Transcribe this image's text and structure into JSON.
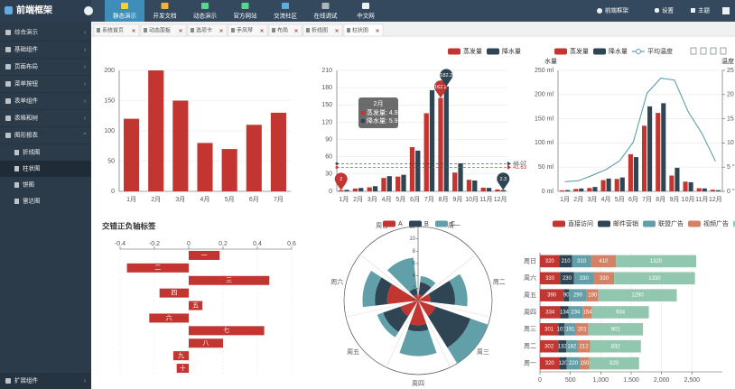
{
  "header": {
    "logo": "前端框架",
    "nav": [
      {
        "label": "静态演示",
        "active": true
      },
      {
        "label": "开发文档"
      },
      {
        "label": "动态演示"
      },
      {
        "label": "官方网站"
      },
      {
        "label": "交流社区"
      },
      {
        "label": "在线调试"
      },
      {
        "label": "中文网"
      }
    ],
    "user": "前端框架",
    "settings": "设置",
    "theme": "主题"
  },
  "sidebar": {
    "items": [
      {
        "label": "综合演示"
      },
      {
        "label": "基础组件"
      },
      {
        "label": "页面布局"
      },
      {
        "label": "菜单按钮"
      },
      {
        "label": "表单组件"
      },
      {
        "label": "表格和树"
      },
      {
        "label": "图形报表",
        "expanded": true,
        "children": [
          {
            "label": "折线图"
          },
          {
            "label": "柱状图",
            "active": true
          },
          {
            "label": "饼图"
          },
          {
            "label": "雷达图"
          }
        ]
      }
    ],
    "footer": "扩展组件"
  },
  "tabs": [
    {
      "label": "系统首页"
    },
    {
      "label": "动态面板"
    },
    {
      "label": "选项卡"
    },
    {
      "label": "手风琴"
    },
    {
      "label": "布局"
    },
    {
      "label": "折线图"
    },
    {
      "label": "柱状图",
      "active": true
    }
  ],
  "chart_data": [
    {
      "type": "bar",
      "categories": [
        "1月",
        "2月",
        "3月",
        "4月",
        "5月",
        "6月",
        "7月"
      ],
      "values": [
        120,
        200,
        150,
        80,
        70,
        110,
        130
      ],
      "color": "#c23531",
      "ylim": [
        0,
        200
      ],
      "yticks": [
        0,
        50,
        100,
        150,
        200
      ],
      "grid": true
    },
    {
      "type": "bar",
      "categories": [
        "1月",
        "2月",
        "3月",
        "4月",
        "5月",
        "6月",
        "7月",
        "8月",
        "9月",
        "10月",
        "11月",
        "12月"
      ],
      "series": [
        {
          "name": "蒸发量",
          "color": "#c23531",
          "values": [
            2.0,
            4.9,
            7.0,
            23.2,
            25.6,
            76.7,
            135.6,
            162.2,
            32.6,
            20.0,
            6.4,
            3.3
          ],
          "mark_points": [
            "max",
            "min"
          ],
          "mark_line": 41.63
        },
        {
          "name": "降水量",
          "color": "#2f4554",
          "values": [
            2.6,
            5.9,
            9.0,
            26.4,
            28.7,
            70.7,
            175.6,
            182.2,
            48.7,
            18.8,
            6.0,
            2.3
          ],
          "mark_points": [
            "max",
            "min"
          ],
          "mark_line": 48.07
        }
      ],
      "ylim": [
        0,
        210
      ],
      "yticks": [
        0,
        30,
        60,
        90,
        120,
        150,
        180,
        210
      ],
      "grid": true,
      "legend": "top-right",
      "tooltip": {
        "title": "2月",
        "rows": [
          "蒸发量: 4.9",
          "降水量: 5.9"
        ]
      }
    },
    {
      "type": "bar",
      "categories": [
        "1月",
        "2月",
        "3月",
        "4月",
        "5月",
        "6月",
        "7月",
        "8月",
        "9月",
        "10月",
        "11月",
        "12月"
      ],
      "series": [
        {
          "name": "蒸发量",
          "color": "#c23531",
          "values": [
            2.0,
            4.9,
            7.0,
            23.2,
            25.6,
            76.7,
            135.6,
            162.2,
            32.6,
            20.0,
            6.4,
            3.3
          ]
        },
        {
          "name": "降水量",
          "color": "#2f4554",
          "values": [
            2.6,
            5.9,
            9.0,
            26.4,
            28.7,
            70.7,
            175.6,
            182.2,
            48.7,
            18.8,
            6.0,
            2.3
          ]
        },
        {
          "name": "平均温度",
          "color": "#61a0a8",
          "type": "line",
          "axis": "y2",
          "values": [
            2.0,
            2.2,
            3.3,
            4.5,
            6.3,
            10.2,
            20.3,
            23.4,
            23.0,
            16.5,
            12.0,
            6.2
          ]
        }
      ],
      "ylabel": "水量",
      "y2label": "温度",
      "ylim": [
        0,
        250
      ],
      "yticks": [
        {
          "value": 0,
          "label": "0 ml"
        },
        {
          "value": 50,
          "label": "50 ml"
        },
        {
          "value": 100,
          "label": "100 ml"
        },
        {
          "value": 150,
          "label": "150 ml"
        },
        {
          "value": 200,
          "label": "200 ml"
        },
        {
          "value": 250,
          "label": "250 ml"
        }
      ],
      "y2lim": [
        0,
        25
      ],
      "y2ticks": [
        {
          "value": 0,
          "label": "0 °C"
        },
        {
          "value": 5,
          "label": "5 °C"
        },
        {
          "value": 10,
          "label": "10 °C"
        },
        {
          "value": 15,
          "label": "15 °C"
        },
        {
          "value": 20,
          "label": "20 °C"
        },
        {
          "value": 25,
          "label": "25 °C"
        }
      ],
      "grid": true,
      "legend": "top-left"
    },
    {
      "type": "hbar",
      "title": "交错正负轴标签",
      "categories": [
        "十",
        "九",
        "八",
        "七",
        "六",
        "五",
        "四",
        "三",
        "二",
        "一"
      ],
      "values": [
        -0.07,
        -0.09,
        0.2,
        0.44,
        -0.23,
        0.08,
        -0.17,
        0.47,
        -0.36,
        0.18
      ],
      "color": "#c23531",
      "xlim": [
        -0.4,
        0.6
      ],
      "xticks": [
        -0.4,
        -0.2,
        0,
        0.2,
        0.4,
        0.6
      ],
      "x_axis_position": "top",
      "category_labels": "on-bar",
      "grid": true
    },
    {
      "type": "polar-bar",
      "categories": [
        "周一",
        "周二",
        "周三",
        "周四",
        "周五",
        "周六",
        "周日"
      ],
      "series": [
        {
          "name": "A",
          "color": "#c23531",
          "values": [
            1,
            2,
            3,
            4,
            3,
            5,
            1
          ]
        },
        {
          "name": "B",
          "color": "#2f4554",
          "values": [
            2,
            4,
            6,
            1,
            3,
            2,
            1
          ]
        },
        {
          "name": "C",
          "color": "#61a0a8",
          "values": [
            1,
            2,
            3,
            4,
            1,
            2,
            5
          ]
        }
      ],
      "rlim": [
        0,
        12
      ],
      "rticks": [
        0,
        2,
        4,
        6,
        8,
        10,
        12
      ],
      "legend": "top-left"
    },
    {
      "type": "hbar",
      "stacked": true,
      "categories": [
        "周一",
        "周二",
        "周三",
        "周四",
        "周五",
        "周六",
        "周日"
      ],
      "series": [
        {
          "name": "直接访问",
          "color": "#c23531",
          "values": [
            320,
            302,
            301,
            334,
            390,
            330,
            320
          ]
        },
        {
          "name": "邮件营销",
          "color": "#2f4554",
          "values": [
            120,
            132,
            101,
            134,
            90,
            230,
            210
          ]
        },
        {
          "name": "联盟广告",
          "color": "#61a0a8",
          "values": [
            220,
            182,
            191,
            234,
            290,
            330,
            310
          ]
        },
        {
          "name": "视频广告",
          "color": "#d48265",
          "values": [
            150,
            212,
            201,
            154,
            190,
            330,
            410
          ]
        },
        {
          "name": "搜索引擎",
          "color": "#91c7ae",
          "values": [
            820,
            832,
            901,
            934,
            1290,
            1330,
            1320
          ]
        }
      ],
      "xlim": [
        0,
        3000
      ],
      "xticks": [
        0,
        500,
        {
          "value": 1000,
          "label": "1,000"
        },
        {
          "value": 1500,
          "label": "1,500"
        },
        {
          "value": 2000,
          "label": "2,000"
        },
        {
          "value": 2500,
          "label": "2,500"
        }
      ],
      "x_axis_position": "bottom",
      "category_labels": "axis",
      "data_labels": true,
      "grid": true,
      "legend": "top-left"
    }
  ]
}
